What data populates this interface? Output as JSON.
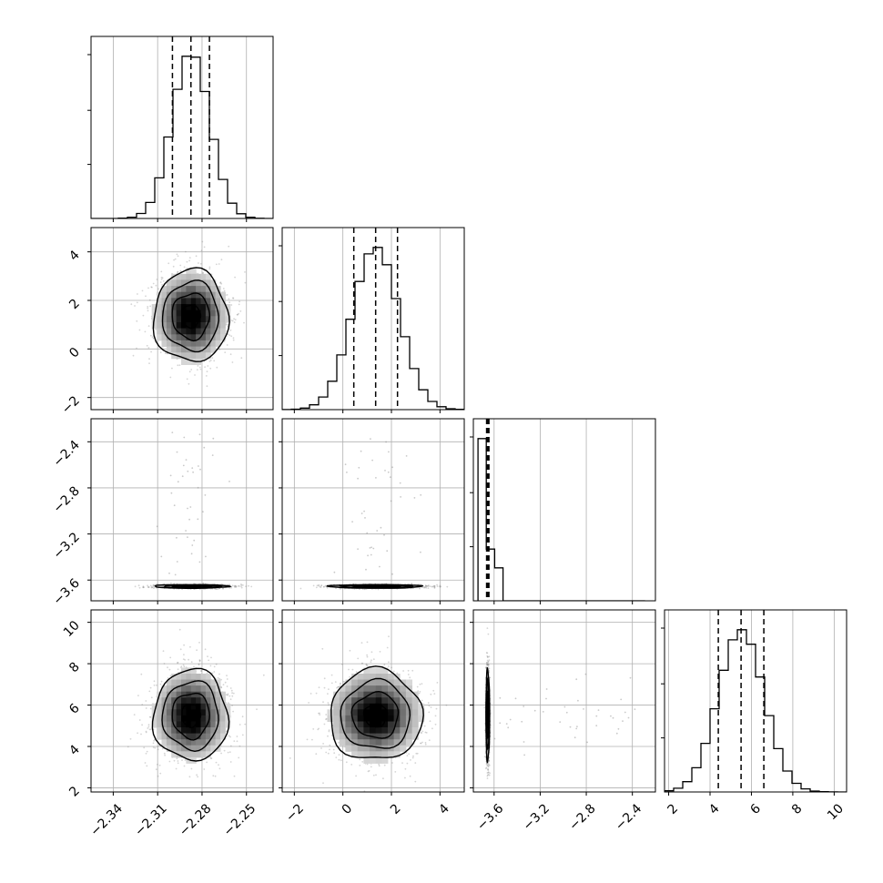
{
  "chart_data": {
    "type": "corner",
    "n_params": 4,
    "grid": true,
    "hist_color": "#000000",
    "scatter_color": "#888888",
    "params": [
      {
        "range": [
          -2.355,
          -2.232
        ],
        "ticks": [
          -2.34,
          -2.31,
          -2.28,
          -2.25
        ],
        "tick_labels": [
          "−2.34",
          "−2.31",
          "−2.28",
          "−2.25"
        ],
        "mean": -2.2875,
        "sd": 0.0126,
        "quantiles": [
          -2.3,
          -2.2875,
          -2.275
        ]
      },
      {
        "range": [
          -2.5,
          5.0
        ],
        "ticks": [
          -2,
          0,
          2,
          4
        ],
        "tick_labels": [
          "−2",
          "0",
          "2",
          "4"
        ],
        "mean": 1.35,
        "sd": 0.95,
        "quantiles": [
          0.45,
          1.35,
          2.25
        ]
      },
      {
        "range": [
          -3.78,
          -2.2
        ],
        "ticks": [
          -3.6,
          -3.2,
          -2.8,
          -2.4
        ],
        "tick_labels": [
          "−3.6",
          "−3.2",
          "−2.8",
          "−2.4"
        ],
        "mean": -3.655,
        "sd": 0.008,
        "quantiles": [
          -3.665,
          -3.655,
          -3.645
        ]
      },
      {
        "range": [
          1.8,
          10.6
        ],
        "ticks": [
          2,
          4,
          6,
          8,
          10
        ],
        "tick_labels": [
          "2",
          "4",
          "6",
          "8",
          "10"
        ],
        "mean": 5.5,
        "sd": 1.1,
        "quantiles": [
          4.4,
          5.5,
          6.6
        ]
      }
    ],
    "contour_levels_sigma": [
      0.5,
      1.0,
      1.5,
      2.0
    ]
  }
}
